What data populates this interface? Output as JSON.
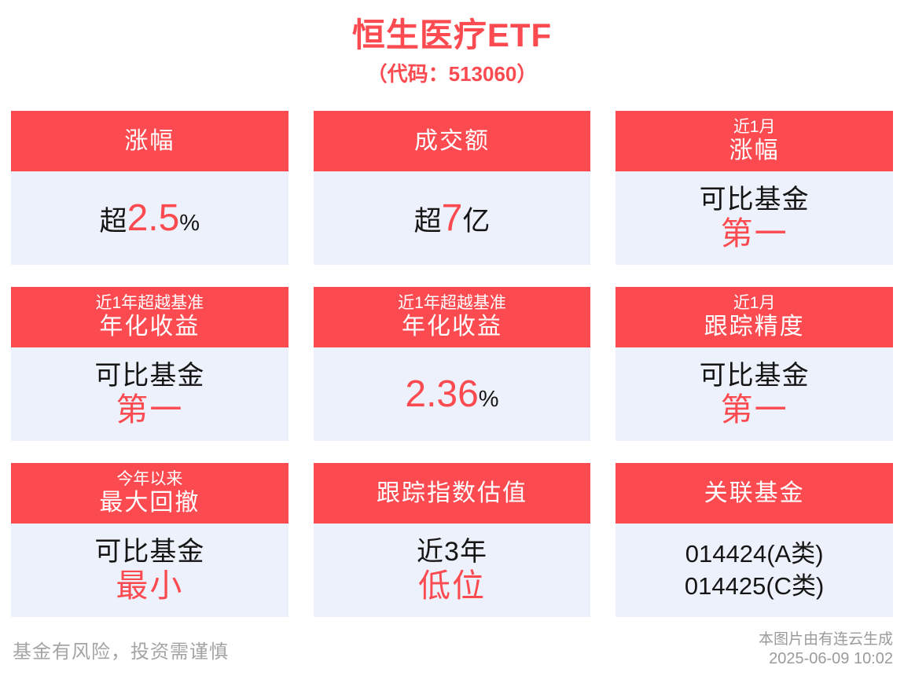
{
  "colors": {
    "accent": "#FC4B50",
    "card_body_bg": "#EDF1FB",
    "text_dark": "#151515",
    "footer_gray": "#A4A4A4"
  },
  "header": {
    "title": "恒生医疗ETF",
    "subtitle": "（代码：513060）"
  },
  "cards": [
    {
      "header": {
        "main": "涨幅"
      },
      "body": {
        "prefix": "超",
        "value": "2.5",
        "unit": "%"
      }
    },
    {
      "header": {
        "main": "成交额"
      },
      "body": {
        "prefix": "超",
        "value": "7",
        "unit": "亿"
      }
    },
    {
      "header": {
        "small": "近1月",
        "main": "涨幅"
      },
      "body": {
        "line1": "可比基金",
        "line2": "第一"
      }
    },
    {
      "header": {
        "small": "近1年超越基准",
        "main": "年化收益"
      },
      "body": {
        "line1": "可比基金",
        "line2": "第一"
      }
    },
    {
      "header": {
        "small": "近1年超越基准",
        "main": "年化收益"
      },
      "body": {
        "value": "2.36",
        "unit": "%"
      }
    },
    {
      "header": {
        "small": "近1月",
        "main": "跟踪精度"
      },
      "body": {
        "line1": "可比基金",
        "line2": "第一"
      }
    },
    {
      "header": {
        "small": "今年以来",
        "main": "最大回撤"
      },
      "body": {
        "line1": "可比基金",
        "line2": "最小"
      }
    },
    {
      "header": {
        "main": "跟踪指数估值"
      },
      "body": {
        "line1": "近3年",
        "line2": "低位"
      }
    },
    {
      "header": {
        "main": "关联基金"
      },
      "body": {
        "line1": "014424(A类)",
        "line2": "014425(C类)"
      }
    }
  ],
  "footer": {
    "disclaimer": "基金有风险，投资需谨慎",
    "source": "本图片由有连云生成",
    "timestamp": "2025-06-09 10:02"
  }
}
